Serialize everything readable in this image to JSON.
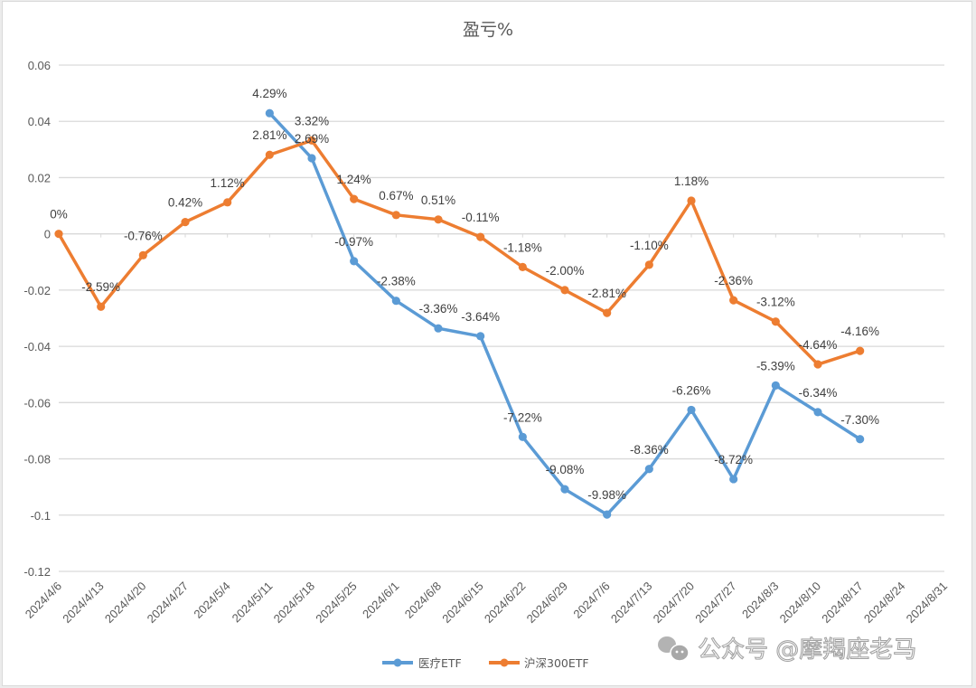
{
  "chart_data": {
    "type": "line",
    "title": "盈亏%",
    "xlabel": "",
    "ylabel": "",
    "ylim": [
      -0.12,
      0.06
    ],
    "yticks": [
      0.06,
      0.04,
      0.02,
      0,
      -0.02,
      -0.04,
      -0.06,
      -0.08,
      -0.1,
      -0.12
    ],
    "ytick_labels": [
      "0.06",
      "0.04",
      "0.02",
      "0",
      "-0.02",
      "-0.04",
      "-0.06",
      "-0.08",
      "-0.1",
      "-0.12"
    ],
    "grid": true,
    "legend_position": "bottom",
    "categories": [
      "2024/4/6",
      "2024/4/13",
      "2024/4/20",
      "2024/4/27",
      "2024/5/4",
      "2024/5/11",
      "2024/5/18",
      "2024/5/25",
      "2024/6/1",
      "2024/6/8",
      "2024/6/15",
      "2024/6/22",
      "2024/6/29",
      "2024/7/6",
      "2024/7/13",
      "2024/7/20",
      "2024/7/27",
      "2024/8/3",
      "2024/8/10",
      "2024/8/17",
      "2024/8/24",
      "2024/8/31"
    ],
    "series": [
      {
        "name": "医疗ETF",
        "color": "#5B9BD5",
        "values": [
          null,
          null,
          null,
          null,
          null,
          0.0429,
          0.0269,
          -0.0097,
          -0.0238,
          -0.0336,
          -0.0364,
          -0.0722,
          -0.0908,
          -0.0998,
          -0.0836,
          -0.0626,
          -0.0872,
          -0.0539,
          -0.0634,
          -0.073,
          null,
          null
        ],
        "labels": [
          null,
          null,
          null,
          null,
          null,
          "4.29%",
          "2.69%",
          "-0.97%",
          "-2.38%",
          "-3.36%",
          "-3.64%",
          "-7.22%",
          "-9.08%",
          "-9.98%",
          "-8.36%",
          "-6.26%",
          "-8.72%",
          "-5.39%",
          "-6.34%",
          "-7.30%",
          null,
          null
        ]
      },
      {
        "name": "沪深300ETF",
        "color": "#ED7D31",
        "values": [
          0,
          -0.0259,
          -0.0076,
          0.0042,
          0.0112,
          0.0281,
          0.0332,
          0.0124,
          0.0067,
          0.0051,
          -0.0011,
          -0.0118,
          -0.02,
          -0.0281,
          -0.011,
          0.0118,
          -0.0236,
          -0.0312,
          -0.0464,
          -0.0416,
          null,
          null
        ],
        "labels": [
          "0%",
          "-2.59%",
          "-0.76%",
          "0.42%",
          "1.12%",
          "2.81%",
          "3.32%",
          "1.24%",
          "0.67%",
          "0.51%",
          "-0.11%",
          "-1.18%",
          "-2.00%",
          "-2.81%",
          "-1.10%",
          "1.18%",
          "-2.36%",
          "-3.12%",
          "-4.64%",
          "-4.16%",
          null,
          null
        ]
      }
    ]
  },
  "watermark": "公众号 @摩羯座老马",
  "watermark_icon": "wechat-icon"
}
